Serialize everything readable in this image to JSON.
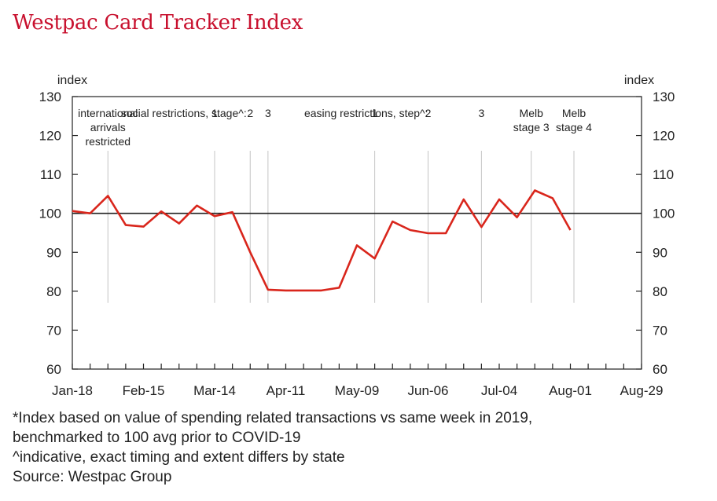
{
  "title": "Westpac Card Tracker Index",
  "chart_data": {
    "type": "line",
    "title": "Westpac Card Tracker Index",
    "ylabel_left": "index",
    "ylabel_right": "index",
    "ylim": [
      60,
      130
    ],
    "yticks": [
      60,
      70,
      80,
      90,
      100,
      110,
      120,
      130
    ],
    "xlim": [
      0,
      32
    ],
    "x_tick_labels": [
      {
        "label": "Jan-18",
        "week": 0
      },
      {
        "label": "Feb-15",
        "week": 4
      },
      {
        "label": "Mar-14",
        "week": 8
      },
      {
        "label": "Apr-11",
        "week": 12
      },
      {
        "label": "May-09",
        "week": 16
      },
      {
        "label": "Jun-06",
        "week": 20
      },
      {
        "label": "Jul-04",
        "week": 24
      },
      {
        "label": "Aug-01",
        "week": 28
      },
      {
        "label": "Aug-29",
        "week": 32
      }
    ],
    "reference_line": 100,
    "series": [
      {
        "color": "#d9261c",
        "x": [
          0,
          1,
          2,
          3,
          4,
          5,
          6,
          7,
          8,
          9,
          10,
          11,
          12,
          13,
          14,
          15,
          16,
          17,
          18,
          19,
          20,
          21,
          22,
          23,
          24,
          25,
          26,
          27,
          28
        ],
        "values": [
          100.6,
          100.0,
          104.5,
          97.0,
          96.6,
          100.5,
          97.4,
          102.0,
          99.3,
          100.3,
          90.0,
          80.4,
          80.2,
          80.2,
          80.2,
          80.9,
          91.8,
          88.4,
          97.9,
          95.7,
          94.9,
          94.9,
          103.6,
          96.5,
          103.6,
          99.0,
          105.9,
          103.9,
          95.7
        ]
      }
    ],
    "events": [
      {
        "week": 2,
        "text": [
          "international",
          "arrivals",
          "restricted"
        ]
      },
      {
        "week": 8,
        "text": [
          "1"
        ]
      },
      {
        "week": 10,
        "text": [
          "2"
        ]
      },
      {
        "week": 11,
        "text": [
          "3"
        ]
      },
      {
        "week": 17,
        "text": [
          "1"
        ]
      },
      {
        "week": 20,
        "text": [
          "2"
        ]
      },
      {
        "week": 23,
        "text": [
          "3"
        ]
      },
      {
        "week": 25.8,
        "text": [
          "Melb",
          "stage 3"
        ]
      },
      {
        "week": 28.2,
        "text": [
          "Melb",
          "stage 4"
        ]
      }
    ],
    "group_labels": [
      {
        "text": "social restrictions, stage^:",
        "anchor_week": 9.8
      },
      {
        "text": "easing restrictions, step^:",
        "anchor_week": 20.0
      }
    ]
  },
  "notes": [
    "*Index based on value of spending related transactions vs same week in 2019,",
    "benchmarked to 100 avg prior to COVID-19",
    "^indicative, exact timing and extent differs by state",
    "Source: Westpac Group"
  ]
}
